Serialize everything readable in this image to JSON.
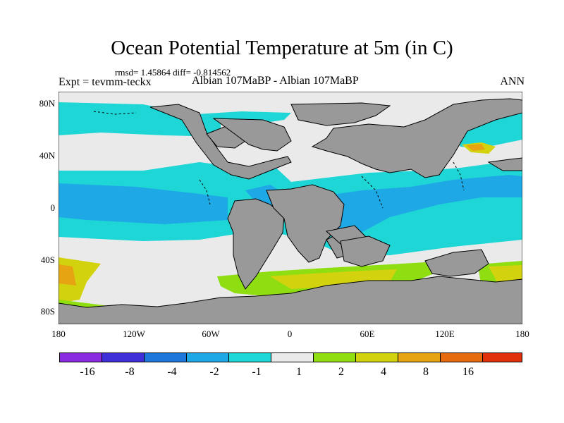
{
  "title": "Ocean Potential Temperature at 5m (in C)",
  "stats_line": "rmsd= 1.45864 diff= -0.814562",
  "left_subtitle": "Expt = tevmm-teckx",
  "center_subtitle": "Albian   107MaBP - Albian   107MaBP",
  "right_subtitle": "ANN",
  "lat_labels": [
    "80N",
    "40N",
    "0",
    "40S",
    "80S"
  ],
  "lon_labels": [
    "180",
    "120W",
    "60W",
    "0",
    "60E",
    "120E",
    "180"
  ],
  "colorbar": {
    "colors": [
      "#8a2be2",
      "#3f2fd8",
      "#1e78dc",
      "#1ea8e6",
      "#1ed6d6",
      "#eaeaea",
      "#8ede12",
      "#d2d20e",
      "#e6a312",
      "#e66a0e",
      "#e0300a"
    ],
    "labels": [
      "-16",
      "-8",
      "-4",
      "-2",
      "-1",
      "1",
      "2",
      "4",
      "8",
      "16"
    ]
  },
  "colors": {
    "land": "#999999",
    "coastline": "#000000"
  }
}
